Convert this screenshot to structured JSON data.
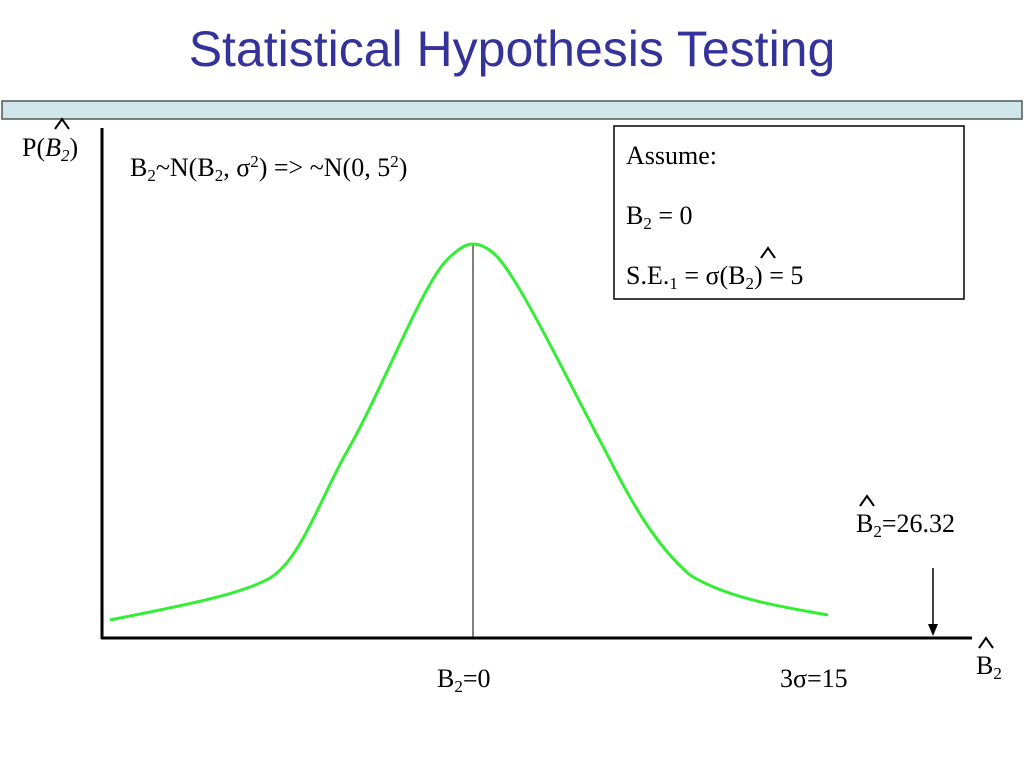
{
  "title": "Statistical Hypothesis Testing",
  "y_axis_label": [
    "P(",
    "B",
    "2",
    ")"
  ],
  "formula": [
    "B",
    "2",
    "~N(B",
    "2",
    ", σ",
    "2",
    ") => ~N(0, 5",
    "2",
    ")"
  ],
  "assume_box": {
    "heading": "Assume:",
    "line1": [
      "B",
      "2",
      " = 0"
    ],
    "line2": [
      "S.E.",
      "1",
      " = σ(B",
      "2",
      ") = 5"
    ]
  },
  "estimate_label": [
    "B",
    "2",
    "=26.32"
  ],
  "x_labels": {
    "center": [
      "B",
      "2",
      "=0"
    ],
    "right": "3σ=15"
  },
  "x_axis_label": [
    "B",
    "2"
  ]
}
